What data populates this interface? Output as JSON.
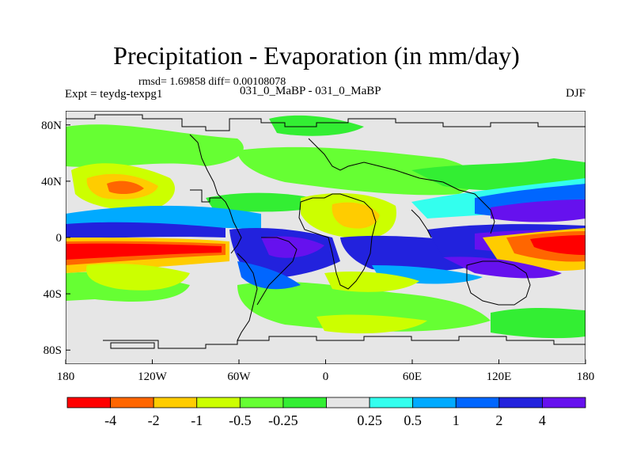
{
  "title": "Precipitation - Evaporation (in mm/day)",
  "stats": "rmsd= 1.69858 diff= 0.00108078",
  "experiment": "Expt = teydg-texpg1",
  "case": "031_0_MaBP - 031_0_MaBP",
  "season": "DJF",
  "lon_ticks": [
    "180",
    "120W",
    "60W",
    "0",
    "60E",
    "120E",
    "180"
  ],
  "lat_ticks": [
    "80N",
    "40N",
    "0",
    "40S",
    "80S"
  ],
  "colorbar": {
    "colors": [
      "#ff0000",
      "#ff6600",
      "#ffcc00",
      "#ccff00",
      "#66ff33",
      "#33ee33",
      "#e6e6e6",
      "#33ffee",
      "#00aaff",
      "#0066ff",
      "#2222dd",
      "#6611ee"
    ],
    "labels": [
      "-4",
      "-2",
      "-1",
      "-0.5",
      "-0.25",
      "0.25",
      "0.5",
      "1",
      "2",
      "4"
    ]
  }
}
